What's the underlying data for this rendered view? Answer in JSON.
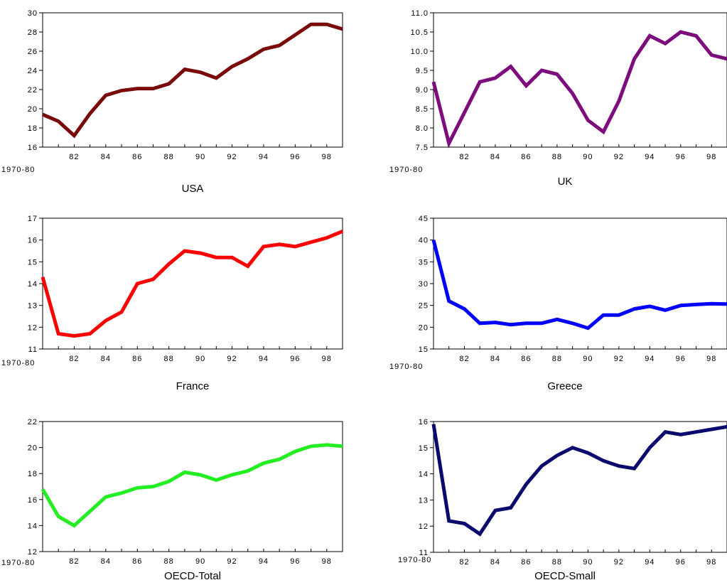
{
  "chart_data": [
    {
      "type": "line",
      "title": "USA",
      "base_label": "1970-80",
      "color": "#7a0a0a",
      "x": [
        "1970-80",
        "81",
        "82",
        "83",
        "84",
        "85",
        "86",
        "87",
        "88",
        "89",
        "90",
        "91",
        "92",
        "93",
        "94",
        "95",
        "96",
        "97",
        "98",
        "99"
      ],
      "values": [
        19.4,
        18.7,
        17.2,
        19.5,
        21.4,
        21.9,
        22.1,
        22.1,
        22.6,
        24.1,
        23.8,
        23.2,
        24.4,
        25.2,
        26.2,
        26.6,
        27.7,
        28.8,
        28.8,
        28.3
      ],
      "ylim": [
        16,
        30
      ],
      "yticks": [
        "16",
        "18",
        "20",
        "22",
        "24",
        "26",
        "28",
        "30"
      ],
      "xtick_labels": [
        "82",
        "84",
        "86",
        "88",
        "90",
        "92",
        "94",
        "96",
        "98"
      ]
    },
    {
      "type": "line",
      "title": "UK",
      "base_label": "1970-80",
      "color": "#7d0c7d",
      "x": [
        "1970-80",
        "81",
        "82",
        "83",
        "84",
        "85",
        "86",
        "87",
        "88",
        "89",
        "90",
        "91",
        "92",
        "93",
        "94",
        "95",
        "96",
        "97",
        "98",
        "99"
      ],
      "values": [
        9.2,
        7.6,
        8.4,
        9.2,
        9.3,
        9.6,
        9.1,
        9.5,
        9.4,
        8.9,
        8.2,
        7.9,
        8.7,
        9.8,
        10.4,
        10.2,
        10.5,
        10.4,
        9.9,
        9.8
      ],
      "ylim": [
        7.5,
        11.0
      ],
      "yticks": [
        "7.5",
        "8.0",
        "8.5",
        "9.0",
        "9.5",
        "10.0",
        "10.5",
        "11.0"
      ],
      "xtick_labels": [
        "82",
        "84",
        "86",
        "88",
        "90",
        "92",
        "94",
        "96",
        "98"
      ]
    },
    {
      "type": "line",
      "title": "France",
      "base_label": "1970-80",
      "color": "#ff0000",
      "x": [
        "1970-80",
        "81",
        "82",
        "83",
        "84",
        "85",
        "86",
        "87",
        "88",
        "89",
        "90",
        "91",
        "92",
        "93",
        "94",
        "95",
        "96",
        "97",
        "98",
        "99"
      ],
      "values": [
        14.3,
        11.7,
        11.6,
        11.7,
        12.3,
        12.7,
        14.0,
        14.2,
        14.9,
        15.5,
        15.4,
        15.2,
        15.2,
        14.8,
        15.7,
        15.8,
        15.7,
        15.9,
        16.1,
        16.4
      ],
      "ylim": [
        11,
        17
      ],
      "yticks": [
        "11",
        "12",
        "13",
        "14",
        "15",
        "16",
        "17"
      ],
      "xtick_labels": [
        "82",
        "84",
        "86",
        "88",
        "90",
        "92",
        "94",
        "96",
        "98"
      ]
    },
    {
      "type": "line",
      "title": "Greece",
      "base_label": "1970-80",
      "color": "#0000ff",
      "x": [
        "1970-80",
        "81",
        "82",
        "83",
        "84",
        "85",
        "86",
        "87",
        "88",
        "89",
        "90",
        "91",
        "92",
        "93",
        "94",
        "95",
        "96",
        "97",
        "98",
        "99"
      ],
      "values": [
        40.0,
        26.0,
        24.2,
        20.9,
        21.1,
        20.6,
        20.9,
        20.9,
        21.8,
        20.9,
        19.8,
        22.8,
        22.8,
        24.2,
        24.8,
        23.9,
        25.0,
        25.2,
        25.4,
        25.3
      ],
      "ylim": [
        15,
        45
      ],
      "yticks": [
        "15",
        "20",
        "25",
        "30",
        "35",
        "40",
        "45"
      ],
      "xtick_labels": [
        "82",
        "84",
        "86",
        "88",
        "90",
        "92",
        "94",
        "96",
        "98"
      ]
    },
    {
      "type": "line",
      "title": "OECD-Total",
      "base_label": "1970-80",
      "color": "#22ee22",
      "x": [
        "1970-80",
        "81",
        "82",
        "83",
        "84",
        "85",
        "86",
        "87",
        "88",
        "89",
        "90",
        "91",
        "92",
        "93",
        "94",
        "95",
        "96",
        "97",
        "98",
        "99"
      ],
      "values": [
        16.8,
        14.7,
        14.0,
        15.1,
        16.2,
        16.5,
        16.9,
        17.0,
        17.4,
        18.1,
        17.9,
        17.5,
        17.9,
        18.2,
        18.8,
        19.1,
        19.7,
        20.1,
        20.2,
        20.1
      ],
      "ylim": [
        12,
        22
      ],
      "yticks": [
        "12",
        "14",
        "16",
        "18",
        "20",
        "22"
      ],
      "xtick_labels": [
        "82",
        "84",
        "86",
        "88",
        "90",
        "92",
        "94",
        "96",
        "98"
      ]
    },
    {
      "type": "line",
      "title": "OECD-Small",
      "base_label": "1970-80",
      "color": "#0a0a6e",
      "x": [
        "1970-80",
        "81",
        "82",
        "83",
        "84",
        "85",
        "86",
        "87",
        "88",
        "89",
        "90",
        "91",
        "92",
        "93",
        "94",
        "95",
        "96",
        "97",
        "98",
        "99"
      ],
      "values": [
        15.9,
        12.2,
        12.1,
        11.7,
        12.6,
        12.7,
        13.6,
        14.3,
        14.7,
        15.0,
        14.8,
        14.5,
        14.3,
        14.2,
        15.0,
        15.6,
        15.5,
        15.6,
        15.7,
        15.8
      ],
      "ylim": [
        11,
        16
      ],
      "yticks": [
        "11",
        "12",
        "13",
        "14",
        "15",
        "16"
      ],
      "xtick_labels": [
        "82",
        "84",
        "86",
        "88",
        "90",
        "92",
        "94",
        "96",
        "98"
      ]
    }
  ]
}
